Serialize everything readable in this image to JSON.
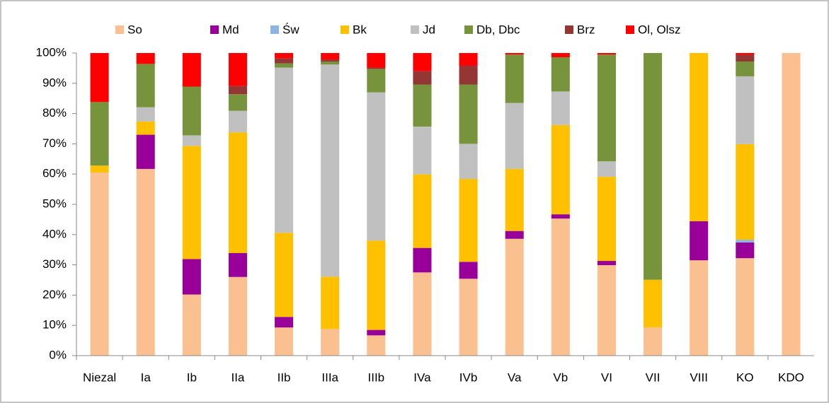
{
  "chart_data": {
    "type": "stacked_bar",
    "categories": [
      "Niezal",
      "Ia",
      "Ib",
      "IIa",
      "IIb",
      "IIIa",
      "IIIb",
      "IVa",
      "IVb",
      "Va",
      "Vb",
      "VI",
      "VII",
      "VIII",
      "KO",
      "KDO"
    ],
    "series": [
      {
        "name": "So",
        "color": "#fac090",
        "values": [
          60.5,
          61.7,
          20.2,
          26,
          9.3,
          8.8,
          6.7,
          27.5,
          25.4,
          38.6,
          45.3,
          29.9,
          9.3,
          31.5,
          32.2,
          100
        ]
      },
      {
        "name": "Md",
        "color": "#990099",
        "values": [
          0,
          11.3,
          11.7,
          7.9,
          3.5,
          0,
          1.8,
          8.1,
          5.6,
          2.6,
          1.4,
          1.4,
          0,
          12.9,
          5.2,
          0
        ]
      },
      {
        "name": "Św",
        "color": "#8db4e2",
        "values": [
          0,
          0,
          0,
          0,
          0,
          0,
          0,
          0,
          0,
          0,
          0,
          0,
          0,
          0,
          0.9,
          0
        ]
      },
      {
        "name": "Bk",
        "color": "#ffc000",
        "values": [
          2.3,
          4.4,
          37.4,
          39.9,
          27.8,
          17.3,
          29.5,
          24.3,
          27.4,
          20.5,
          29.5,
          27.8,
          15.8,
          55.6,
          31.6,
          0
        ]
      },
      {
        "name": "Jd",
        "color": "#c0c0c0",
        "values": [
          0,
          4.7,
          3.5,
          7.1,
          54.6,
          70.1,
          49,
          15.8,
          11.6,
          21.8,
          11.1,
          5.1,
          0,
          0,
          22.4,
          0
        ]
      },
      {
        "name": "Db, Dbc",
        "color": "#77933c",
        "values": [
          21,
          14.3,
          16.1,
          5.5,
          1.4,
          1,
          7.7,
          13.9,
          19.6,
          16,
          11.3,
          35.3,
          74.9,
          0,
          4.9,
          0
        ]
      },
      {
        "name": "Brz",
        "color": "#943634",
        "values": [
          0,
          0,
          0,
          2.7,
          1.6,
          0.6,
          0.5,
          4.4,
          6.2,
          0,
          0,
          0,
          0,
          0,
          2.2,
          0
        ]
      },
      {
        "name": "Ol, Olsz",
        "color": "#ff0000",
        "values": [
          16.2,
          3.6,
          11.1,
          10.9,
          1.8,
          2.2,
          4.8,
          6,
          4.2,
          0.5,
          1.4,
          0.5,
          0,
          0,
          0.6,
          0
        ]
      }
    ],
    "ylim": [
      0,
      100
    ],
    "yticks": [
      {
        "value": 0,
        "label": "0%"
      },
      {
        "value": 10,
        "label": "10%"
      },
      {
        "value": 20,
        "label": "20%"
      },
      {
        "value": 30,
        "label": "30%"
      },
      {
        "value": 40,
        "label": "40%"
      },
      {
        "value": 50,
        "label": "50%"
      },
      {
        "value": 60,
        "label": "60%"
      },
      {
        "value": 70,
        "label": "70%"
      },
      {
        "value": 80,
        "label": "80%"
      },
      {
        "value": 90,
        "label": "90%"
      },
      {
        "value": 100,
        "label": "100%"
      }
    ],
    "legend": "top"
  }
}
